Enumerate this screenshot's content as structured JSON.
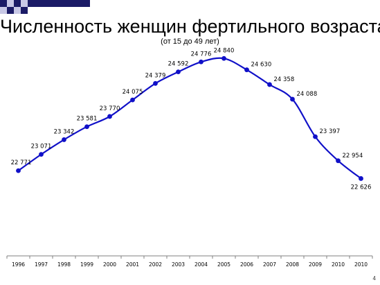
{
  "slide": {
    "title": "Численность женщин фертильного возраста",
    "subtitle": "(от 15 до 49 лет)",
    "page_number": "4",
    "colors": {
      "line": "#1010c8",
      "marker": "#1010c8",
      "deco_dark": "#1b1b66",
      "deco_light": "#c8c8e6"
    }
  },
  "chart_data": {
    "type": "line",
    "title": "Численность женщин фертильного возраста",
    "subtitle": "(от 15 до 49 лет)",
    "categories": [
      "1996",
      "1997",
      "1998",
      "1999",
      "2000",
      "2001",
      "2002",
      "2003",
      "2004",
      "2005",
      "2006",
      "2007",
      "2008",
      "2009",
      "2010",
      "2010"
    ],
    "values": [
      22771,
      23071,
      23342,
      23581,
      23770,
      24075,
      24379,
      24592,
      24776,
      24840,
      24630,
      24358,
      24088,
      23397,
      22954,
      22626
    ],
    "value_labels": [
      "22 771",
      "23 071",
      "23 342",
      "23 581",
      "23 770",
      "24 075",
      "24 379",
      "24 592",
      "24 776",
      "24 840",
      "24 630",
      "24 358",
      "24 088",
      "23 397",
      "22 954",
      "22 626"
    ],
    "ylim": [
      21200,
      25150
    ],
    "grid": false,
    "legend": "none",
    "smooth": true
  }
}
